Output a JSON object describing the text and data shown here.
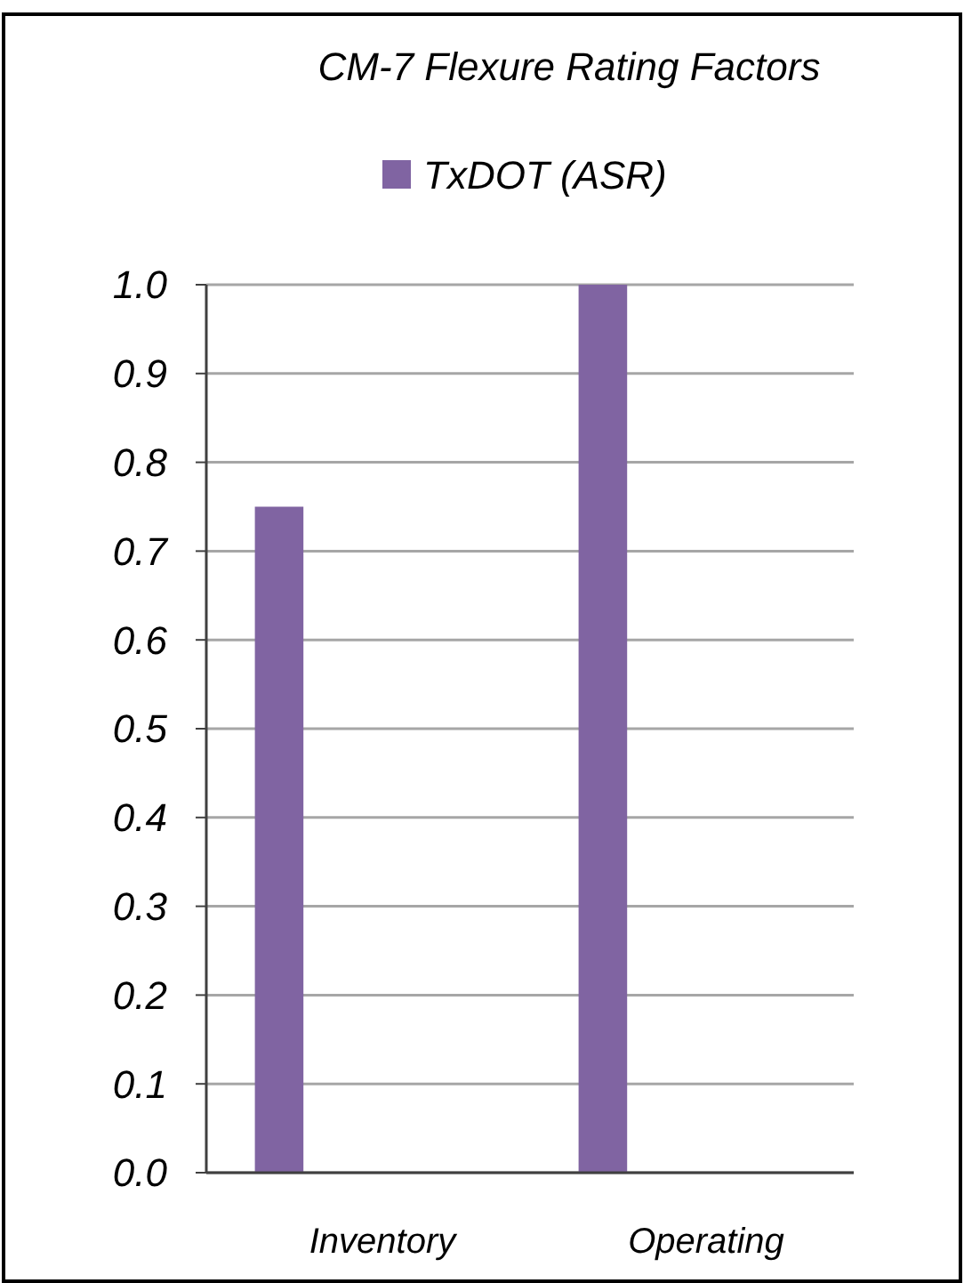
{
  "chart_data": {
    "type": "bar",
    "title": "CM-7 Flexure Rating Factors",
    "categories": [
      "Inventory",
      "Operating"
    ],
    "series": [
      {
        "name": "TxDOT (ASR)",
        "color": "#8064a2",
        "values": [
          0.75,
          1.0
        ]
      }
    ],
    "ylim": [
      0,
      1.0
    ],
    "yticks": [
      {
        "value": 0,
        "label": "0.0"
      },
      0.1,
      0.2,
      0.3,
      0.4,
      0.5,
      0.6,
      0.7,
      0.8,
      0.9,
      {
        "value": 1.0,
        "label": "1.0"
      }
    ],
    "grid": "y",
    "legend": "top"
  }
}
